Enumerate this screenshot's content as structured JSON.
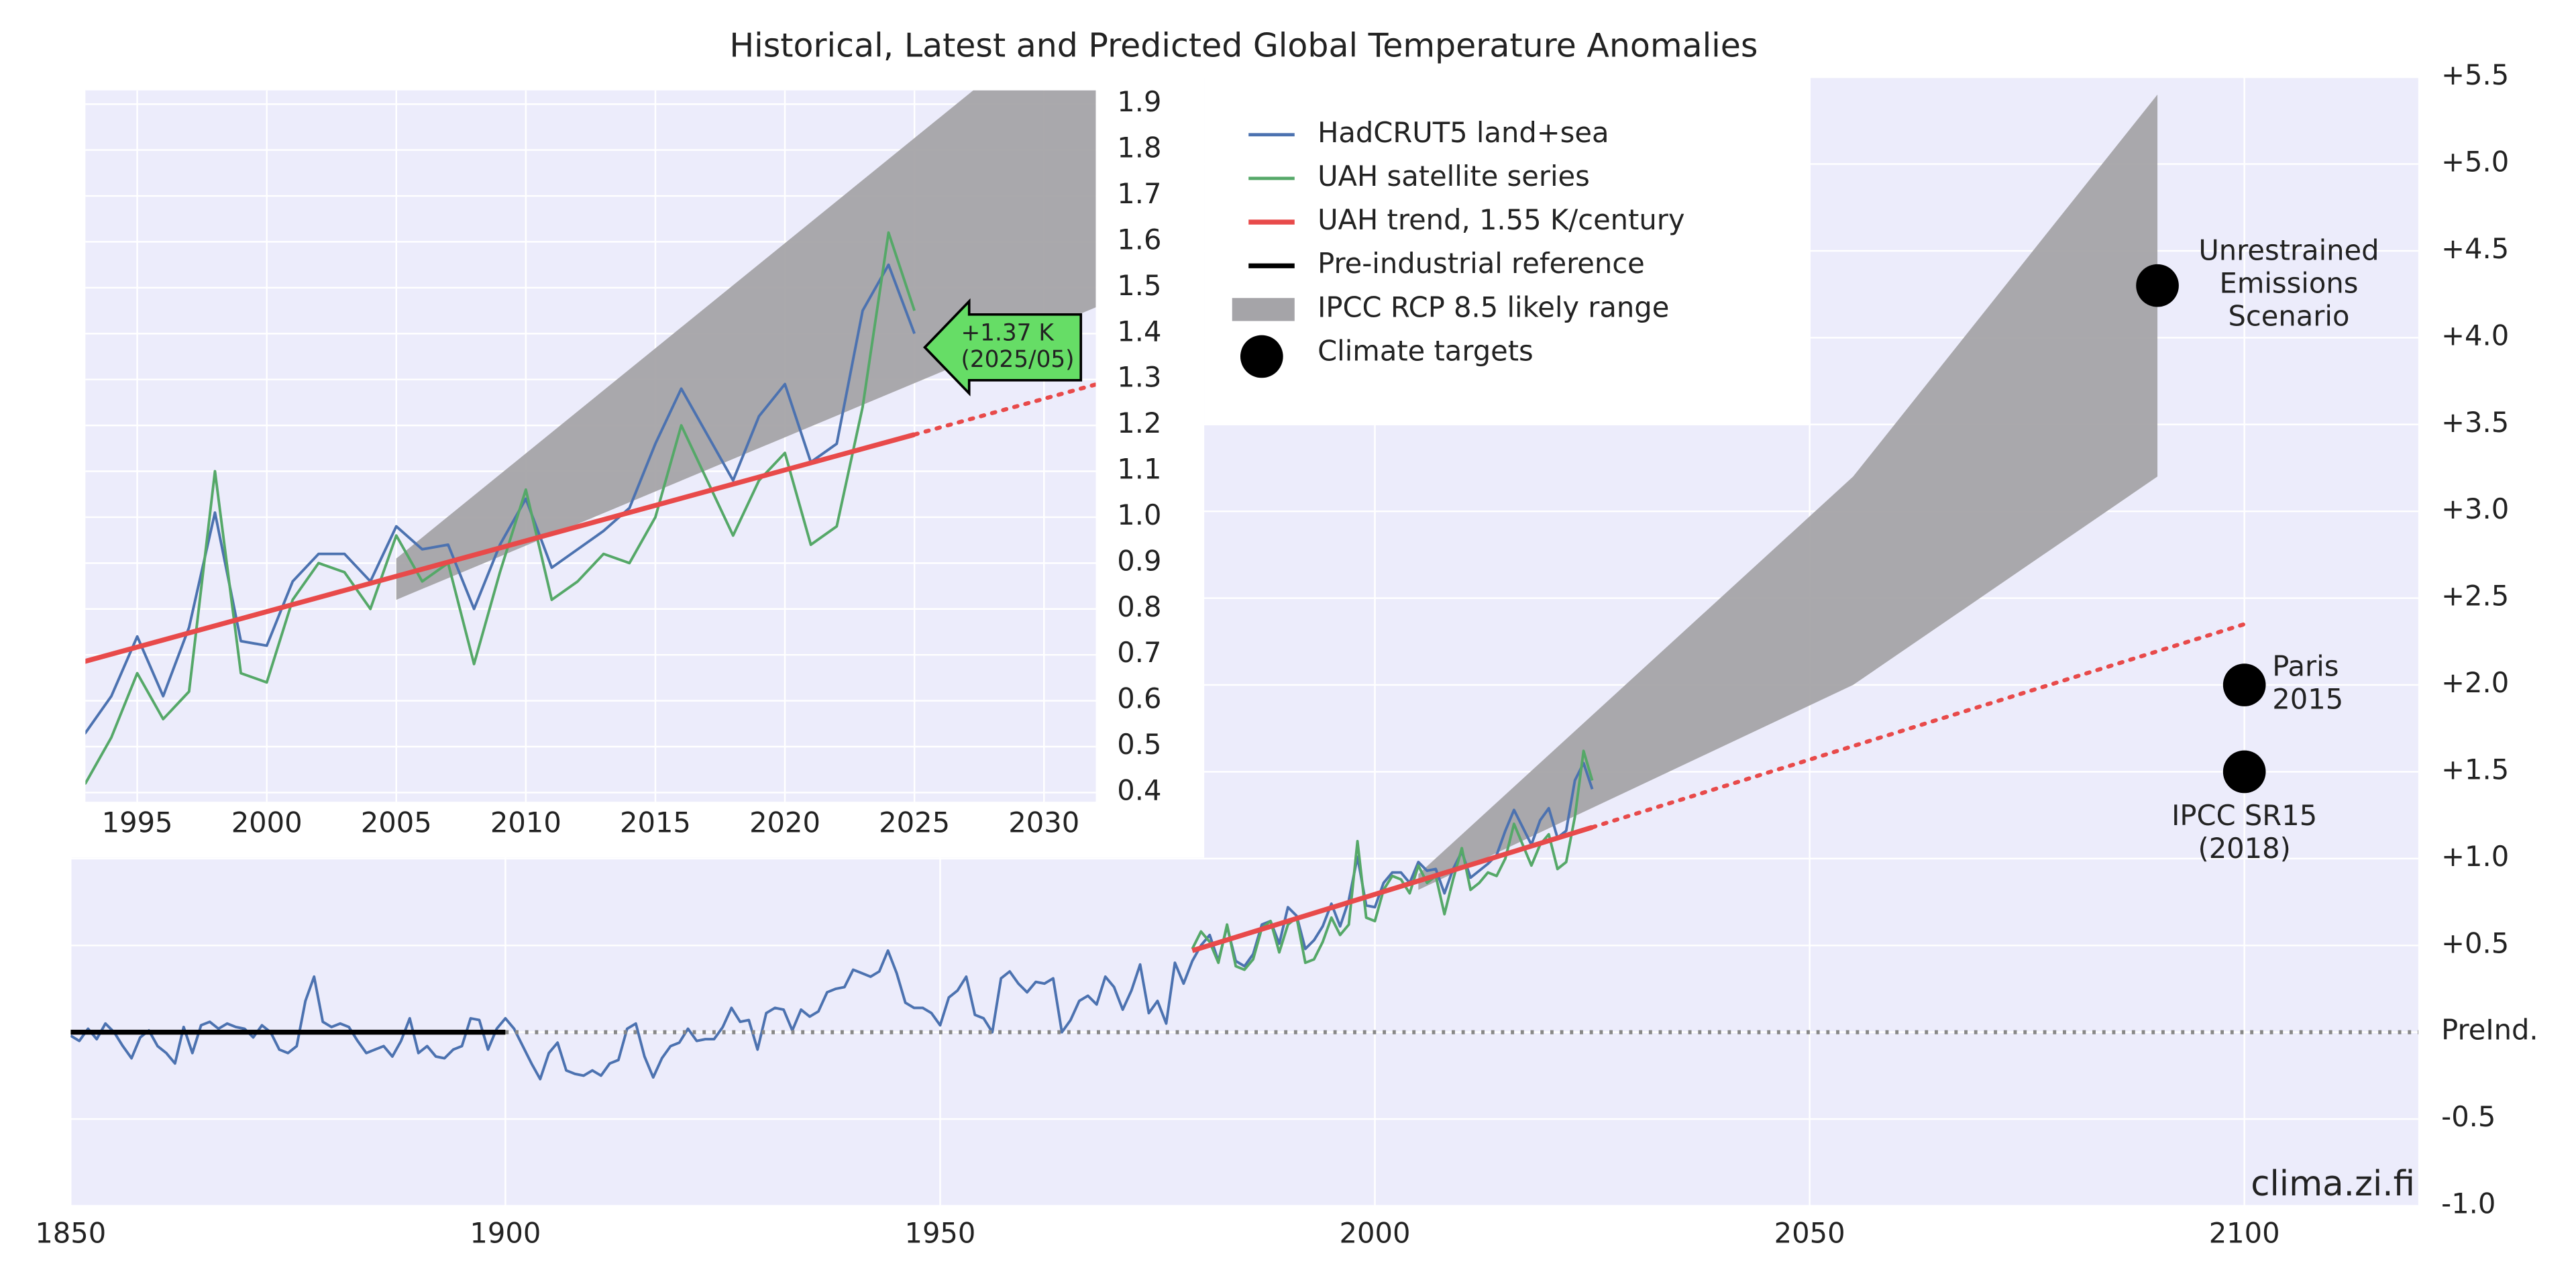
{
  "chart_data": [
    {
      "type": "line",
      "title": "Historical, Latest and Predicted Global Temperature Anomalies",
      "xlim": [
        1850,
        2120
      ],
      "ylim": [
        -1,
        5.5
      ],
      "xticks": [
        1850,
        1900,
        1950,
        2000,
        2050,
        2100
      ],
      "yticks": [
        {
          "value": -1,
          "label": "-1.0"
        },
        -0.5,
        {
          "value": 0,
          "label": "PreInd."
        },
        {
          "value": 0.5,
          "label": "+0.5"
        },
        {
          "value": 1,
          "label": "+1.0"
        },
        {
          "value": 1.5,
          "label": "+1.5"
        },
        {
          "value": 2,
          "label": "+2.0"
        },
        {
          "value": 2.5,
          "label": "+2.5"
        },
        {
          "value": 3,
          "label": "+3.0"
        },
        {
          "value": 3.5,
          "label": "+3.5"
        },
        {
          "value": 4,
          "label": "+4.0"
        },
        {
          "value": 4.5,
          "label": "+4.5"
        },
        {
          "value": 5,
          "label": "+5.0"
        },
        {
          "value": 5.5,
          "label": "+5.5"
        }
      ],
      "grid": true,
      "series": [
        {
          "name": "HadCRUT5 land+sea",
          "color": "#4c72b0",
          "x": [
            1850,
            1851,
            1852,
            1853,
            1854,
            1855,
            1856,
            1857,
            1858,
            1859,
            1860,
            1861,
            1862,
            1863,
            1864,
            1865,
            1866,
            1867,
            1868,
            1869,
            1870,
            1871,
            1872,
            1873,
            1874,
            1875,
            1876,
            1877,
            1878,
            1879,
            1880,
            1881,
            1882,
            1883,
            1884,
            1885,
            1886,
            1887,
            1888,
            1889,
            1890,
            1891,
            1892,
            1893,
            1894,
            1895,
            1896,
            1897,
            1898,
            1899,
            1900,
            1901,
            1902,
            1903,
            1904,
            1905,
            1906,
            1907,
            1908,
            1909,
            1910,
            1911,
            1912,
            1913,
            1914,
            1915,
            1916,
            1917,
            1918,
            1919,
            1920,
            1921,
            1922,
            1923,
            1924,
            1925,
            1926,
            1927,
            1928,
            1929,
            1930,
            1931,
            1932,
            1933,
            1934,
            1935,
            1936,
            1937,
            1938,
            1939,
            1940,
            1941,
            1942,
            1943,
            1944,
            1945,
            1946,
            1947,
            1948,
            1949,
            1950,
            1951,
            1952,
            1953,
            1954,
            1955,
            1956,
            1957,
            1958,
            1959,
            1960,
            1961,
            1962,
            1963,
            1964,
            1965,
            1966,
            1967,
            1968,
            1969,
            1970,
            1971,
            1972,
            1973,
            1974,
            1975,
            1976,
            1977,
            1978,
            1979,
            1980,
            1981,
            1982,
            1983,
            1984,
            1985,
            1986,
            1987,
            1988,
            1989,
            1990,
            1991,
            1992,
            1993,
            1994,
            1995,
            1996,
            1997,
            1998,
            1999,
            2000,
            2001,
            2002,
            2003,
            2004,
            2005,
            2006,
            2007,
            2008,
            2009,
            2010,
            2011,
            2012,
            2013,
            2014,
            2015,
            2016,
            2017,
            2018,
            2019,
            2020,
            2021,
            2022,
            2023,
            2024,
            2025
          ],
          "values": [
            -0.02,
            -0.05,
            0.02,
            -0.04,
            0.05,
            0.0,
            -0.08,
            -0.15,
            -0.03,
            0.01,
            -0.08,
            -0.12,
            -0.18,
            0.03,
            -0.12,
            0.04,
            0.06,
            0.02,
            0.05,
            0.03,
            0.02,
            -0.03,
            0.04,
            0.0,
            -0.1,
            -0.12,
            -0.08,
            0.18,
            0.32,
            0.06,
            0.03,
            0.05,
            0.03,
            -0.05,
            -0.12,
            -0.1,
            -0.08,
            -0.14,
            -0.05,
            0.08,
            -0.12,
            -0.08,
            -0.14,
            -0.15,
            -0.1,
            -0.08,
            0.08,
            0.07,
            -0.1,
            0.02,
            0.08,
            0.02,
            -0.08,
            -0.18,
            -0.27,
            -0.12,
            -0.06,
            -0.22,
            -0.24,
            -0.25,
            -0.22,
            -0.25,
            -0.18,
            -0.16,
            0.02,
            0.05,
            -0.14,
            -0.26,
            -0.15,
            -0.08,
            -0.06,
            0.02,
            -0.05,
            -0.04,
            -0.04,
            0.03,
            0.14,
            0.06,
            0.07,
            -0.1,
            0.11,
            0.14,
            0.13,
            0.01,
            0.13,
            0.09,
            0.12,
            0.23,
            0.25,
            0.26,
            0.36,
            0.34,
            0.32,
            0.35,
            0.47,
            0.34,
            0.17,
            0.14,
            0.14,
            0.11,
            0.04,
            0.2,
            0.24,
            0.32,
            0.1,
            0.08,
            0.0,
            0.31,
            0.35,
            0.28,
            0.23,
            0.29,
            0.28,
            0.31,
            0.0,
            0.07,
            0.18,
            0.21,
            0.16,
            0.32,
            0.26,
            0.13,
            0.24,
            0.39,
            0.11,
            0.18,
            0.05,
            0.4,
            0.28,
            0.41,
            0.5,
            0.56,
            0.41,
            0.61,
            0.41,
            0.38,
            0.45,
            0.62,
            0.64,
            0.51,
            0.72,
            0.67,
            0.48,
            0.53,
            0.61,
            0.74,
            0.61,
            0.76,
            1.01,
            0.73,
            0.72,
            0.86,
            0.92,
            0.92,
            0.86,
            0.98,
            0.93,
            0.94,
            0.8,
            0.94,
            1.04,
            0.89,
            0.93,
            0.97,
            1.02,
            1.16,
            1.28,
            1.18,
            1.08,
            1.22,
            1.29,
            1.12,
            1.16,
            1.45,
            1.55,
            1.4
          ]
        },
        {
          "name": "UAH satellite series",
          "color": "#55a868",
          "x": [
            1979,
            1980,
            1981,
            1982,
            1983,
            1984,
            1985,
            1986,
            1987,
            1988,
            1989,
            1990,
            1991,
            1992,
            1993,
            1994,
            1995,
            1996,
            1997,
            1998,
            1999,
            2000,
            2001,
            2002,
            2003,
            2004,
            2005,
            2006,
            2007,
            2008,
            2009,
            2010,
            2011,
            2012,
            2013,
            2014,
            2015,
            2016,
            2017,
            2018,
            2019,
            2020,
            2021,
            2022,
            2023,
            2024,
            2025
          ],
          "values": [
            0.48,
            0.58,
            0.52,
            0.4,
            0.62,
            0.38,
            0.36,
            0.42,
            0.6,
            0.64,
            0.46,
            0.62,
            0.66,
            0.4,
            0.42,
            0.52,
            0.66,
            0.56,
            0.62,
            1.1,
            0.66,
            0.64,
            0.82,
            0.9,
            0.88,
            0.8,
            0.96,
            0.86,
            0.9,
            0.68,
            0.88,
            1.06,
            0.82,
            0.86,
            0.92,
            0.9,
            1.0,
            1.2,
            1.08,
            0.96,
            1.08,
            1.14,
            0.94,
            0.98,
            1.24,
            1.62,
            1.45
          ]
        },
        {
          "name": "UAH trend, 1.55 K/century",
          "color": "#e84a4a",
          "x": [
            1979,
            2025
          ],
          "values": [
            0.47,
            1.18
          ],
          "extension": {
            "x": [
              2025,
              2100
            ],
            "values": [
              1.18,
              2.35
            ]
          }
        },
        {
          "name": "Pre-industrial reference",
          "color": "#000000",
          "x": [
            1850,
            1900
          ],
          "values": [
            0,
            0
          ]
        }
      ],
      "band": {
        "name": "IPCC RCP 8.5 likely range",
        "color": "#a5a4a8",
        "x": [
          2005,
          2055,
          2090
        ],
        "low": [
          0.82,
          2.0,
          3.2
        ],
        "high": [
          0.91,
          3.2,
          5.4
        ]
      },
      "targets": {
        "name": "Climate targets",
        "color": "#000000",
        "x": [
          2090,
          2100,
          2100
        ],
        "values": [
          4.3,
          2.0,
          1.5
        ],
        "labels": [
          [
            "Unrestrained",
            "Emissions",
            "Scenario"
          ],
          [
            "Paris",
            "2015"
          ],
          [
            "IPCC SR15",
            "(2018)"
          ]
        ]
      },
      "watermark": "clima.zi.fi"
    },
    {
      "type": "line",
      "xlim": [
        1993,
        2032
      ],
      "ylim": [
        0.38,
        1.93
      ],
      "xticks": [
        1995,
        2000,
        2005,
        2010,
        2015,
        2020,
        2025,
        2030
      ],
      "yticks": [
        0.4,
        0.5,
        0.6,
        0.7,
        0.8,
        0.9,
        {
          "value": 1,
          "label": "1.0"
        },
        1.1,
        1.2,
        1.3,
        1.4,
        1.5,
        1.6,
        1.7,
        1.8,
        1.9
      ],
      "grid": true,
      "annotation": {
        "text": [
          "+1.37 K",
          "(2025/05)"
        ],
        "x": 2025.4,
        "value": 1.37,
        "color": "#66dd66"
      }
    }
  ]
}
